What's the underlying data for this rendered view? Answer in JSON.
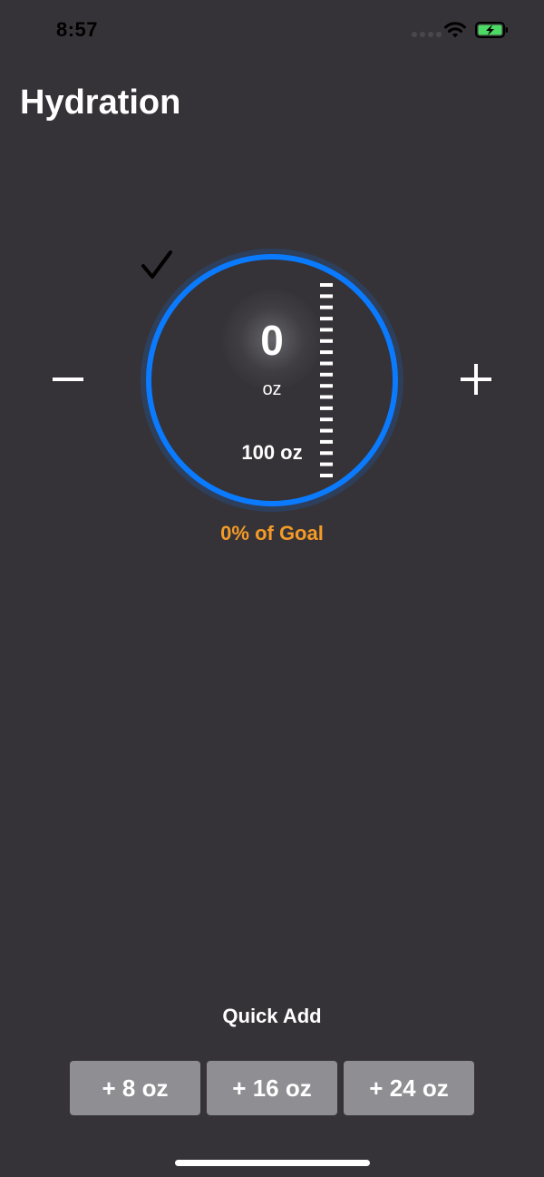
{
  "status_bar": {
    "time": "8:57",
    "icons": [
      "signal-dots-icon",
      "wifi-icon",
      "battery-charging-icon"
    ],
    "battery_color": "#4cd964"
  },
  "header": {
    "title": "Hydration"
  },
  "controls": {
    "decrement_icon": "minus-icon",
    "increment_icon": "plus-icon"
  },
  "gauge": {
    "value": "0",
    "unit": "oz",
    "goal_label": "100 oz",
    "progress_fraction": 0,
    "ring_color": "#0a7aff",
    "check_icon": "check-icon"
  },
  "progress": {
    "text": "0% of Goal",
    "color": "#f39a27"
  },
  "quick_add": {
    "title": "Quick Add",
    "buttons": [
      {
        "label": "+ 8 oz"
      },
      {
        "label": "+ 16 oz"
      },
      {
        "label": "+ 24 oz"
      }
    ]
  }
}
